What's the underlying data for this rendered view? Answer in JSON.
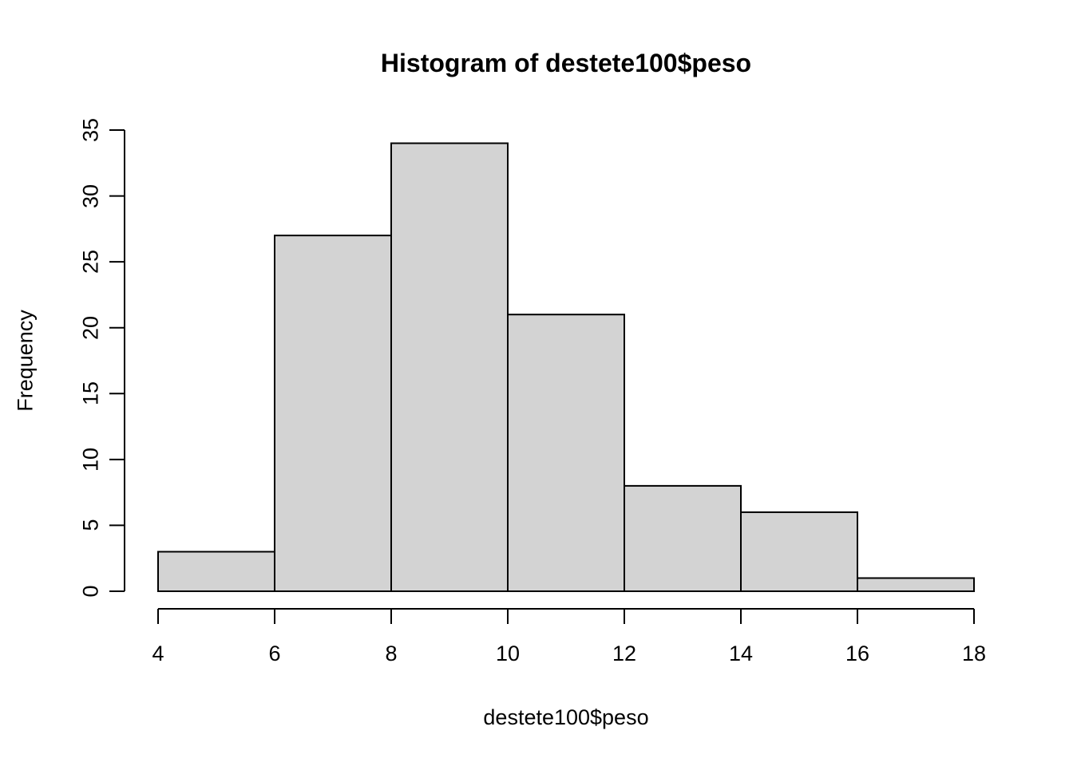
{
  "chart_data": {
    "type": "bar",
    "subtype": "histogram",
    "title": "Histogram of destete100$peso",
    "xlabel": "destete100$peso",
    "ylabel": "Frequency",
    "categories": [
      "4-6",
      "6-8",
      "8-10",
      "10-12",
      "12-14",
      "14-16",
      "16-18"
    ],
    "values": [
      3,
      27,
      34,
      21,
      8,
      6,
      1
    ],
    "bins": [
      {
        "start": 4,
        "end": 6,
        "count": 3
      },
      {
        "start": 6,
        "end": 8,
        "count": 27
      },
      {
        "start": 8,
        "end": 10,
        "count": 34
      },
      {
        "start": 10,
        "end": 12,
        "count": 21
      },
      {
        "start": 12,
        "end": 14,
        "count": 8
      },
      {
        "start": 14,
        "end": 16,
        "count": 6
      },
      {
        "start": 16,
        "end": 18,
        "count": 1
      }
    ],
    "x_ticks": [
      4,
      6,
      8,
      10,
      12,
      14,
      16,
      18
    ],
    "y_ticks": [
      0,
      5,
      10,
      15,
      20,
      25,
      30,
      35
    ],
    "xlim": [
      4,
      18
    ],
    "ylim": [
      0,
      35
    ],
    "grid": false,
    "legend_position": "none",
    "colors": {
      "bar_fill": "#d3d3d3",
      "bar_border": "#000000",
      "axis": "#000000",
      "text": "#000000",
      "background": "#ffffff"
    }
  }
}
